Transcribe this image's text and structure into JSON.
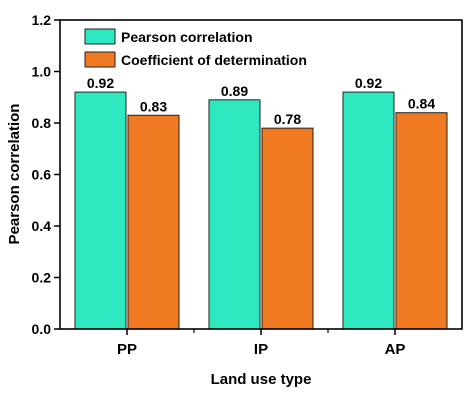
{
  "chart_data": {
    "type": "bar",
    "categories": [
      "PP",
      "IP",
      "AP"
    ],
    "series": [
      {
        "name": "Pearson correlation",
        "values": [
          0.92,
          0.89,
          0.92
        ],
        "color": "#2ee8c0"
      },
      {
        "name": "Coefficient of determination",
        "values": [
          0.83,
          0.78,
          0.84
        ],
        "color": "#f07a22"
      }
    ],
    "data_labels": [
      [
        "0.92",
        "0.89",
        "0.92"
      ],
      [
        "0.83",
        "0.78",
        "0.84"
      ]
    ],
    "xlabel": "Land use type",
    "ylabel": "Pearson correlation",
    "ylim": [
      0,
      1.2
    ],
    "yticks": [
      "0.0",
      "0.2",
      "0.4",
      "0.6",
      "0.8",
      "1.0",
      "1.2"
    ],
    "grid": false,
    "legend": "top-left"
  }
}
